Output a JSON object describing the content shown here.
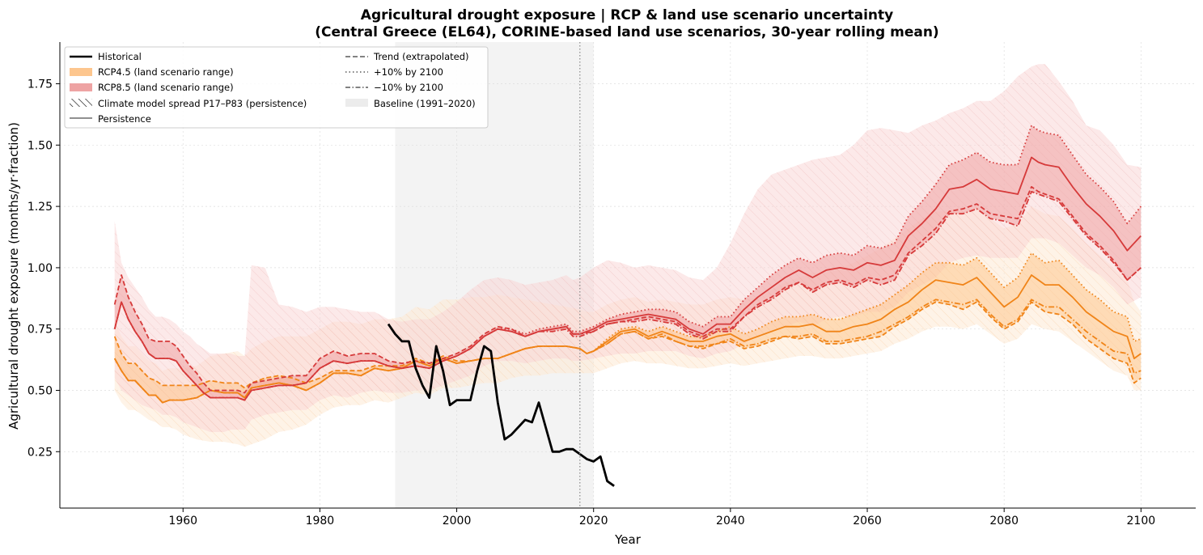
{
  "chart_data": {
    "type": "line",
    "title_line1": "Agricultural drought exposure |  RCP & land use scenario uncertainty",
    "title_line2": "(Central Greece (EL64),  CORINE-based land use scenarios,  30-year rolling mean)",
    "xlabel": "Year",
    "ylabel": "Agricultural drought exposure (months/yr·fraction)",
    "xlim": [
      1942,
      2108
    ],
    "ylim": [
      0.02,
      1.92
    ],
    "xticks": [
      "1960",
      "1980",
      "2000",
      "2020",
      "2040",
      "2060",
      "2080",
      "2100"
    ],
    "yticks": [
      "0.25",
      "0.50",
      "0.75",
      "1.00",
      "1.25",
      "1.50",
      "1.75"
    ],
    "grid": true,
    "legend_position": "top-left",
    "baseline_period": [
      1991,
      2020
    ],
    "reference_year": 2018,
    "colors": {
      "historical": "#000000",
      "rcp45": "#f08418",
      "rcp85": "#d63a3a",
      "rcp45_band": "#fdc68e",
      "rcp85_band": "#eea3a3",
      "rcp45_spread": "#fde9d2",
      "rcp85_spread": "#f9d3d3",
      "baseline": "#ececec",
      "persistence": "#808080"
    },
    "legend": {
      "historical": "Historical",
      "rcp45_band": "RCP4.5 (land scenario range)",
      "rcp85_band": "RCP8.5 (land scenario range)",
      "spread": "Climate model spread P17–P83 (persistence)",
      "persistence": "Persistence",
      "trend": "Trend (extrapolated)",
      "plus10": "+10% by 2100",
      "minus10": "−10% by 2100",
      "baseline": "Baseline (1991–2020)"
    },
    "historical": {
      "x": [
        1990,
        1991,
        1992,
        1993,
        1994,
        1995,
        1996,
        1997,
        1998,
        1999,
        2000,
        2001,
        2002,
        2003,
        2004,
        2005,
        2006,
        2007,
        2008,
        2009,
        2010,
        2011,
        2012,
        2013,
        2014,
        2015,
        2016,
        2017,
        2018,
        2019,
        2020,
        2021,
        2022,
        2023
      ],
      "y": [
        0.77,
        0.73,
        0.7,
        0.7,
        0.59,
        0.52,
        0.47,
        0.68,
        0.58,
        0.44,
        0.46,
        0.46,
        0.46,
        0.58,
        0.68,
        0.66,
        0.45,
        0.3,
        0.32,
        0.35,
        0.38,
        0.37,
        0.45,
        0.35,
        0.25,
        0.25,
        0.26,
        0.26,
        0.24,
        0.22,
        0.21,
        0.23,
        0.13,
        0.11
      ]
    },
    "rcp85": {
      "x": [
        1950,
        1951,
        1952,
        1953,
        1954,
        1955,
        1956,
        1957,
        1958,
        1959,
        1960,
        1961,
        1962,
        1963,
        1964,
        1965,
        1966,
        1967,
        1968,
        1969,
        1970,
        1972,
        1974,
        1976,
        1978,
        1980,
        1982,
        1984,
        1986,
        1988,
        1990,
        1992,
        1994,
        1996,
        1998,
        2000,
        2002,
        2004,
        2006,
        2008,
        2010,
        2012,
        2014,
        2016,
        2017,
        2018,
        2020,
        2022,
        2024,
        2026,
        2028,
        2030,
        2032,
        2034,
        2036,
        2038,
        2040,
        2042,
        2044,
        2046,
        2048,
        2050,
        2052,
        2054,
        2056,
        2058,
        2060,
        2062,
        2064,
        2066,
        2068,
        2070,
        2072,
        2074,
        2076,
        2078,
        2080,
        2082,
        2084,
        2085,
        2086,
        2088,
        2090,
        2092,
        2094,
        2096,
        2098,
        2100
      ],
      "persistence": [
        0.75,
        0.86,
        0.79,
        0.74,
        0.7,
        0.65,
        0.63,
        0.63,
        0.63,
        0.62,
        0.58,
        0.55,
        0.52,
        0.49,
        0.47,
        0.47,
        0.47,
        0.47,
        0.47,
        0.46,
        0.5,
        0.51,
        0.52,
        0.52,
        0.53,
        0.59,
        0.62,
        0.61,
        0.62,
        0.62,
        0.6,
        0.59,
        0.6,
        0.59,
        0.62,
        0.64,
        0.67,
        0.72,
        0.75,
        0.74,
        0.72,
        0.74,
        0.75,
        0.76,
        0.73,
        0.73,
        0.75,
        0.78,
        0.79,
        0.8,
        0.81,
        0.8,
        0.79,
        0.75,
        0.73,
        0.77,
        0.77,
        0.83,
        0.88,
        0.92,
        0.96,
        0.99,
        0.96,
        0.99,
        1.0,
        0.99,
        1.02,
        1.01,
        1.03,
        1.13,
        1.18,
        1.24,
        1.32,
        1.33,
        1.36,
        1.32,
        1.31,
        1.3,
        1.45,
        1.43,
        1.42,
        1.41,
        1.33,
        1.26,
        1.21,
        1.15,
        1.07,
        1.13
      ],
      "trend": [
        0.85,
        0.97,
        0.88,
        0.82,
        0.77,
        0.71,
        0.7,
        0.7,
        0.7,
        0.68,
        0.64,
        0.6,
        0.57,
        0.53,
        0.5,
        0.5,
        0.5,
        0.5,
        0.5,
        0.49,
        0.53,
        0.54,
        0.55,
        0.56,
        0.56,
        0.63,
        0.66,
        0.64,
        0.65,
        0.65,
        0.62,
        0.61,
        0.62,
        0.61,
        0.63,
        0.65,
        0.68,
        0.73,
        0.76,
        0.75,
        0.72,
        0.74,
        0.75,
        0.76,
        0.73,
        0.73,
        0.74,
        0.77,
        0.78,
        0.79,
        0.8,
        0.79,
        0.78,
        0.74,
        0.72,
        0.75,
        0.75,
        0.8,
        0.85,
        0.88,
        0.92,
        0.94,
        0.91,
        0.94,
        0.95,
        0.93,
        0.96,
        0.95,
        0.97,
        1.06,
        1.11,
        1.16,
        1.23,
        1.24,
        1.26,
        1.22,
        1.21,
        1.2,
        1.33,
        1.31,
        1.3,
        1.28,
        1.21,
        1.14,
        1.09,
        1.03,
        0.95,
        1.0
      ],
      "plus10": [
        0.75,
        0.86,
        0.79,
        0.74,
        0.7,
        0.65,
        0.63,
        0.63,
        0.63,
        0.62,
        0.58,
        0.55,
        0.52,
        0.49,
        0.47,
        0.47,
        0.47,
        0.47,
        0.47,
        0.46,
        0.5,
        0.51,
        0.52,
        0.52,
        0.53,
        0.59,
        0.62,
        0.61,
        0.62,
        0.62,
        0.6,
        0.59,
        0.6,
        0.59,
        0.62,
        0.64,
        0.67,
        0.72,
        0.75,
        0.75,
        0.73,
        0.75,
        0.76,
        0.77,
        0.74,
        0.74,
        0.76,
        0.79,
        0.81,
        0.82,
        0.83,
        0.83,
        0.82,
        0.78,
        0.76,
        0.8,
        0.8,
        0.87,
        0.92,
        0.97,
        1.01,
        1.04,
        1.02,
        1.05,
        1.06,
        1.05,
        1.09,
        1.08,
        1.1,
        1.21,
        1.27,
        1.34,
        1.42,
        1.44,
        1.47,
        1.43,
        1.42,
        1.42,
        1.58,
        1.56,
        1.55,
        1.54,
        1.46,
        1.38,
        1.33,
        1.27,
        1.18,
        1.25
      ],
      "minus10": [
        0.75,
        0.86,
        0.79,
        0.74,
        0.7,
        0.65,
        0.63,
        0.63,
        0.63,
        0.62,
        0.58,
        0.55,
        0.52,
        0.49,
        0.47,
        0.47,
        0.47,
        0.47,
        0.47,
        0.46,
        0.5,
        0.51,
        0.52,
        0.52,
        0.53,
        0.59,
        0.62,
        0.61,
        0.62,
        0.62,
        0.6,
        0.59,
        0.6,
        0.59,
        0.62,
        0.64,
        0.67,
        0.72,
        0.75,
        0.74,
        0.72,
        0.74,
        0.74,
        0.75,
        0.72,
        0.72,
        0.74,
        0.77,
        0.78,
        0.78,
        0.79,
        0.78,
        0.77,
        0.73,
        0.71,
        0.74,
        0.74,
        0.8,
        0.84,
        0.87,
        0.91,
        0.94,
        0.9,
        0.93,
        0.94,
        0.92,
        0.95,
        0.93,
        0.95,
        1.05,
        1.09,
        1.14,
        1.22,
        1.22,
        1.24,
        1.2,
        1.19,
        1.17,
        1.31,
        1.3,
        1.29,
        1.27,
        1.2,
        1.13,
        1.08,
        1.02,
        0.95,
        1.0
      ],
      "spread_low": [
        0.55,
        0.5,
        0.48,
        0.46,
        0.44,
        0.43,
        0.42,
        0.4,
        0.4,
        0.39,
        0.37,
        0.36,
        0.35,
        0.34,
        0.33,
        0.33,
        0.33,
        0.34,
        0.34,
        0.34,
        0.38,
        0.4,
        0.41,
        0.42,
        0.42,
        0.46,
        0.48,
        0.47,
        0.49,
        0.5,
        0.49,
        0.49,
        0.5,
        0.5,
        0.52,
        0.54,
        0.56,
        0.6,
        0.62,
        0.62,
        0.61,
        0.62,
        0.63,
        0.63,
        0.62,
        0.62,
        0.63,
        0.64,
        0.65,
        0.65,
        0.66,
        0.66,
        0.66,
        0.64,
        0.63,
        0.65,
        0.66,
        0.69,
        0.72,
        0.74,
        0.76,
        0.78,
        0.76,
        0.79,
        0.8,
        0.8,
        0.82,
        0.82,
        0.84,
        0.9,
        0.93,
        0.96,
        1.02,
        1.04,
        1.05,
        1.04,
        1.04,
        1.04,
        1.12,
        1.12,
        1.12,
        1.1,
        1.05,
        1.0,
        0.97,
        0.92,
        0.85,
        0.88
      ],
      "spread_high": [
        1.19,
        1.02,
        0.96,
        0.92,
        0.88,
        0.83,
        0.8,
        0.8,
        0.79,
        0.77,
        0.74,
        0.72,
        0.69,
        0.67,
        0.65,
        0.65,
        0.65,
        0.65,
        0.64,
        0.64,
        1.01,
        1.0,
        0.85,
        0.84,
        0.82,
        0.84,
        0.84,
        0.83,
        0.82,
        0.82,
        0.79,
        0.78,
        0.79,
        0.79,
        0.82,
        0.86,
        0.91,
        0.95,
        0.96,
        0.95,
        0.93,
        0.94,
        0.95,
        0.97,
        0.95,
        0.96,
        1.0,
        1.03,
        1.02,
        1.0,
        1.01,
        1.0,
        0.99,
        0.96,
        0.95,
        1.0,
        1.1,
        1.22,
        1.32,
        1.38,
        1.4,
        1.42,
        1.44,
        1.45,
        1.46,
        1.5,
        1.56,
        1.57,
        1.56,
        1.55,
        1.58,
        1.6,
        1.63,
        1.65,
        1.68,
        1.68,
        1.72,
        1.78,
        1.82,
        1.83,
        1.83,
        1.76,
        1.68,
        1.58,
        1.56,
        1.5,
        1.42,
        1.41
      ]
    },
    "rcp45": {
      "x": [
        1950,
        1951,
        1952,
        1953,
        1954,
        1955,
        1956,
        1957,
        1958,
        1959,
        1960,
        1962,
        1964,
        1966,
        1968,
        1969,
        1970,
        1972,
        1974,
        1976,
        1978,
        1980,
        1982,
        1984,
        1986,
        1988,
        1990,
        1992,
        1994,
        1996,
        1998,
        2000,
        2002,
        2004,
        2006,
        2008,
        2010,
        2012,
        2014,
        2016,
        2018,
        2019,
        2020,
        2022,
        2024,
        2026,
        2028,
        2030,
        2032,
        2034,
        2036,
        2038,
        2040,
        2042,
        2044,
        2046,
        2048,
        2050,
        2052,
        2054,
        2056,
        2058,
        2060,
        2062,
        2064,
        2066,
        2068,
        2070,
        2072,
        2074,
        2076,
        2078,
        2080,
        2082,
        2084,
        2086,
        2088,
        2090,
        2092,
        2094,
        2096,
        2098,
        2099,
        2100
      ],
      "persistence": [
        0.63,
        0.58,
        0.54,
        0.54,
        0.51,
        0.48,
        0.48,
        0.45,
        0.46,
        0.46,
        0.46,
        0.47,
        0.5,
        0.49,
        0.49,
        0.47,
        0.51,
        0.52,
        0.53,
        0.52,
        0.5,
        0.53,
        0.57,
        0.57,
        0.56,
        0.59,
        0.58,
        0.59,
        0.62,
        0.6,
        0.63,
        0.61,
        0.62,
        0.63,
        0.63,
        0.65,
        0.67,
        0.68,
        0.68,
        0.68,
        0.67,
        0.65,
        0.66,
        0.7,
        0.74,
        0.75,
        0.72,
        0.74,
        0.72,
        0.7,
        0.7,
        0.72,
        0.73,
        0.7,
        0.72,
        0.74,
        0.76,
        0.76,
        0.77,
        0.74,
        0.74,
        0.76,
        0.77,
        0.79,
        0.83,
        0.86,
        0.91,
        0.95,
        0.94,
        0.93,
        0.96,
        0.9,
        0.84,
        0.88,
        0.97,
        0.93,
        0.93,
        0.88,
        0.82,
        0.78,
        0.74,
        0.72,
        0.63,
        0.65
      ],
      "trend": [
        0.72,
        0.65,
        0.61,
        0.61,
        0.58,
        0.55,
        0.54,
        0.52,
        0.52,
        0.52,
        0.52,
        0.52,
        0.54,
        0.53,
        0.53,
        0.51,
        0.53,
        0.55,
        0.56,
        0.55,
        0.53,
        0.55,
        0.58,
        0.58,
        0.58,
        0.6,
        0.6,
        0.6,
        0.63,
        0.61,
        0.64,
        0.62,
        0.62,
        0.63,
        0.63,
        0.65,
        0.67,
        0.68,
        0.68,
        0.68,
        0.67,
        0.65,
        0.66,
        0.69,
        0.73,
        0.74,
        0.71,
        0.72,
        0.7,
        0.68,
        0.67,
        0.69,
        0.7,
        0.67,
        0.68,
        0.7,
        0.72,
        0.71,
        0.72,
        0.69,
        0.69,
        0.7,
        0.71,
        0.72,
        0.76,
        0.79,
        0.83,
        0.86,
        0.85,
        0.83,
        0.86,
        0.8,
        0.75,
        0.78,
        0.86,
        0.82,
        0.81,
        0.77,
        0.71,
        0.67,
        0.63,
        0.61,
        0.53,
        0.55
      ],
      "plus10": [
        0.63,
        0.58,
        0.54,
        0.54,
        0.51,
        0.48,
        0.48,
        0.45,
        0.46,
        0.46,
        0.46,
        0.47,
        0.5,
        0.49,
        0.49,
        0.47,
        0.51,
        0.52,
        0.53,
        0.52,
        0.5,
        0.53,
        0.57,
        0.57,
        0.56,
        0.59,
        0.58,
        0.59,
        0.62,
        0.6,
        0.63,
        0.61,
        0.62,
        0.63,
        0.63,
        0.65,
        0.67,
        0.68,
        0.68,
        0.68,
        0.67,
        0.65,
        0.66,
        0.71,
        0.75,
        0.76,
        0.74,
        0.76,
        0.74,
        0.72,
        0.72,
        0.74,
        0.76,
        0.73,
        0.75,
        0.78,
        0.8,
        0.8,
        0.81,
        0.79,
        0.79,
        0.81,
        0.83,
        0.85,
        0.89,
        0.93,
        0.98,
        1.02,
        1.02,
        1.01,
        1.04,
        0.98,
        0.92,
        0.96,
        1.06,
        1.02,
        1.03,
        0.97,
        0.91,
        0.87,
        0.82,
        0.8,
        0.7,
        0.71
      ],
      "minus10": [
        0.63,
        0.58,
        0.54,
        0.54,
        0.51,
        0.48,
        0.48,
        0.45,
        0.46,
        0.46,
        0.46,
        0.47,
        0.5,
        0.49,
        0.49,
        0.47,
        0.51,
        0.52,
        0.53,
        0.52,
        0.5,
        0.53,
        0.57,
        0.57,
        0.56,
        0.59,
        0.58,
        0.59,
        0.62,
        0.6,
        0.63,
        0.61,
        0.62,
        0.63,
        0.63,
        0.65,
        0.67,
        0.68,
        0.68,
        0.68,
        0.67,
        0.65,
        0.66,
        0.69,
        0.73,
        0.74,
        0.71,
        0.73,
        0.7,
        0.68,
        0.68,
        0.69,
        0.71,
        0.68,
        0.69,
        0.71,
        0.72,
        0.72,
        0.73,
        0.7,
        0.7,
        0.71,
        0.72,
        0.74,
        0.77,
        0.8,
        0.84,
        0.87,
        0.86,
        0.85,
        0.87,
        0.81,
        0.76,
        0.79,
        0.87,
        0.84,
        0.84,
        0.79,
        0.74,
        0.7,
        0.66,
        0.65,
        0.57,
        0.58
      ],
      "spread_low": [
        0.5,
        0.45,
        0.42,
        0.42,
        0.4,
        0.38,
        0.37,
        0.35,
        0.35,
        0.34,
        0.32,
        0.3,
        0.29,
        0.29,
        0.28,
        0.27,
        0.28,
        0.3,
        0.33,
        0.34,
        0.36,
        0.4,
        0.43,
        0.44,
        0.44,
        0.46,
        0.45,
        0.47,
        0.49,
        0.48,
        0.51,
        0.51,
        0.52,
        0.53,
        0.53,
        0.55,
        0.56,
        0.56,
        0.57,
        0.57,
        0.57,
        0.57,
        0.57,
        0.59,
        0.61,
        0.62,
        0.61,
        0.61,
        0.6,
        0.59,
        0.59,
        0.6,
        0.61,
        0.6,
        0.61,
        0.62,
        0.63,
        0.64,
        0.64,
        0.63,
        0.63,
        0.64,
        0.65,
        0.66,
        0.69,
        0.71,
        0.74,
        0.76,
        0.76,
        0.75,
        0.77,
        0.73,
        0.69,
        0.71,
        0.77,
        0.75,
        0.74,
        0.7,
        0.66,
        0.62,
        0.58,
        0.56,
        0.5,
        0.5
      ],
      "spread_high": [
        0.78,
        0.72,
        0.68,
        0.68,
        0.65,
        0.62,
        0.61,
        0.58,
        0.59,
        0.59,
        0.59,
        0.6,
        0.64,
        0.65,
        0.66,
        0.64,
        0.67,
        0.7,
        0.72,
        0.72,
        0.72,
        0.75,
        0.78,
        0.78,
        0.77,
        0.79,
        0.79,
        0.8,
        0.84,
        0.83,
        0.87,
        0.87,
        0.88,
        0.88,
        0.89,
        0.88,
        0.87,
        0.86,
        0.85,
        0.84,
        0.83,
        0.82,
        0.82,
        0.85,
        0.87,
        0.88,
        0.86,
        0.87,
        0.86,
        0.85,
        0.85,
        0.87,
        0.88,
        0.87,
        0.88,
        0.91,
        0.94,
        0.96,
        0.98,
        0.98,
        1.0,
        1.02,
        1.05,
        1.08,
        1.12,
        1.16,
        1.2,
        1.23,
        1.23,
        1.23,
        1.25,
        1.2,
        1.16,
        1.18,
        1.25,
        1.22,
        1.21,
        1.16,
        1.1,
        1.05,
        1.0,
        0.95,
        0.86,
        0.82
      ]
    }
  }
}
